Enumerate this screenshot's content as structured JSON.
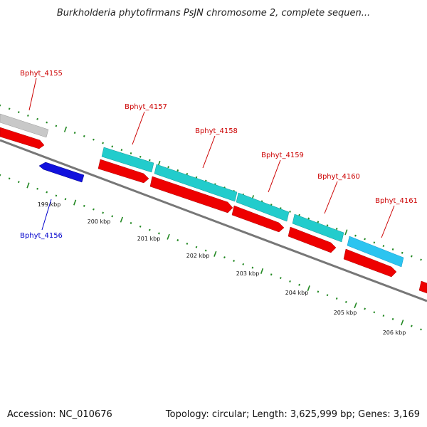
{
  "title": "Burkholderia phytofirmans PsJN chromosome 2, complete sequen...",
  "footer": {
    "accession": "Accession: NC_010676",
    "summary": "Topology: circular; Length: 3,625,999 bp; Genes: 3,169"
  },
  "colors": {
    "forward_cds": "#ff0000",
    "reverse_cds": "#0000cc",
    "feature_cyan": "#22cccc",
    "feature_blue": "#2cc4f0",
    "feature_gray": "#c8c8c8",
    "label_forward": "#cc0000",
    "label_reverse": "#0000cc",
    "backbone": "#777777",
    "tick": "#228822"
  },
  "scale_labels": [
    "199 kbp",
    "200 kbp",
    "201 kbp",
    "202 kbp",
    "203 kbp",
    "204 kbp",
    "205 kbp",
    "206 kbp"
  ],
  "genes": [
    {
      "name": "Bphyt_4155",
      "strand": "forward"
    },
    {
      "name": "Bphyt_4156",
      "strand": "reverse"
    },
    {
      "name": "Bphyt_4157",
      "strand": "forward"
    },
    {
      "name": "Bphyt_4158",
      "strand": "forward"
    },
    {
      "name": "Bphyt_4159",
      "strand": "forward"
    },
    {
      "name": "Bphyt_4160",
      "strand": "forward"
    },
    {
      "name": "Bphyt_4161",
      "strand": "forward"
    }
  ]
}
